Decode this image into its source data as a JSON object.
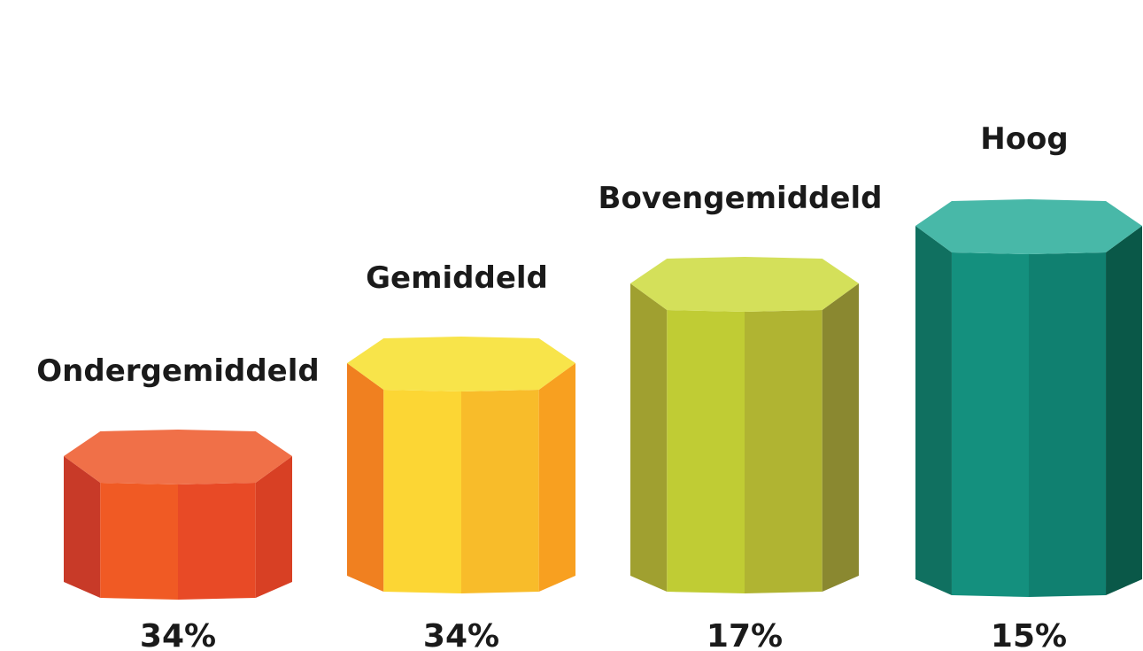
{
  "pillars": [
    {
      "label": "Ondergemiddeld",
      "share": "34%",
      "colors": [
        "#f07048",
        "#c83a28",
        "#f05a24",
        "#e84a26",
        "#d84024"
      ]
    },
    {
      "label": "Gemiddeld",
      "share": "34%",
      "colors": [
        "#f8e44a",
        "#f08020",
        "#fcd634",
        "#f8bc2a",
        "#f8a020"
      ]
    },
    {
      "label": "Bovengemiddeld",
      "share": "17%",
      "colors": [
        "#d4e05a",
        "#a0a030",
        "#c0cc34",
        "#b0b432",
        "#8a8830"
      ]
    },
    {
      "label": "Hoog",
      "share": "15%",
      "colors": [
        "#48b8a8",
        "#107060",
        "#14907e",
        "#108070",
        "#0a5848"
      ]
    }
  ]
}
